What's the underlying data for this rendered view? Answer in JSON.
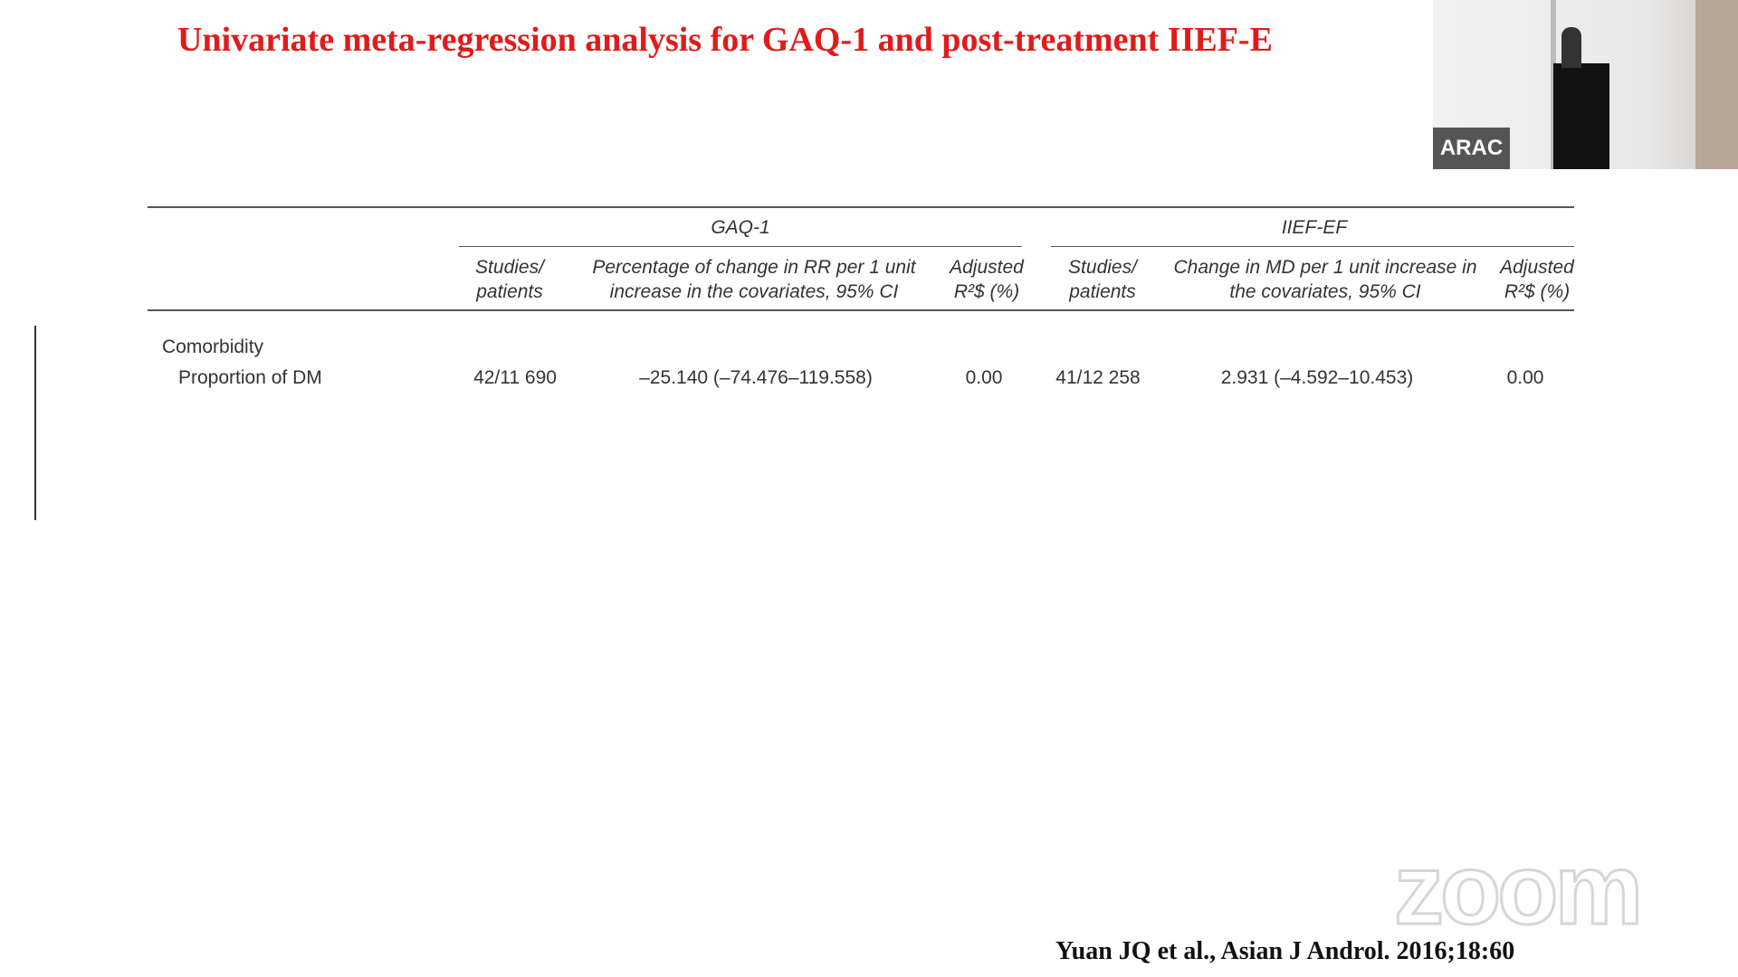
{
  "slide": {
    "title": "Univariate meta-regression analysis for GAQ-1 and post-treatment IIEF-E",
    "table": {
      "groups": [
        "GAQ-1",
        "IIEF-EF"
      ],
      "headers": [
        "Studies/ patients",
        "Percentage of change in RR per 1 unit increase in the covariates, 95% CI",
        "Adjusted R²$ (%)",
        "Studies/ patients",
        "Change in MD per 1 unit increase in the covariates, 95% CI",
        "Adjusted R²$ (%)"
      ],
      "section": "Comorbidity",
      "rows": [
        [
          "Proportion of DM",
          "42/11 690",
          "–25.140 (–74.476–119.558)",
          "0.00",
          "41/12 258",
          "2.931 (–4.592–10.453)",
          "0.00"
        ]
      ]
    },
    "citation": "Yuan JQ et al., Asian J Androl. 2016;18:60"
  },
  "video": {
    "label": "ARAC"
  },
  "watermark": "zoom"
}
